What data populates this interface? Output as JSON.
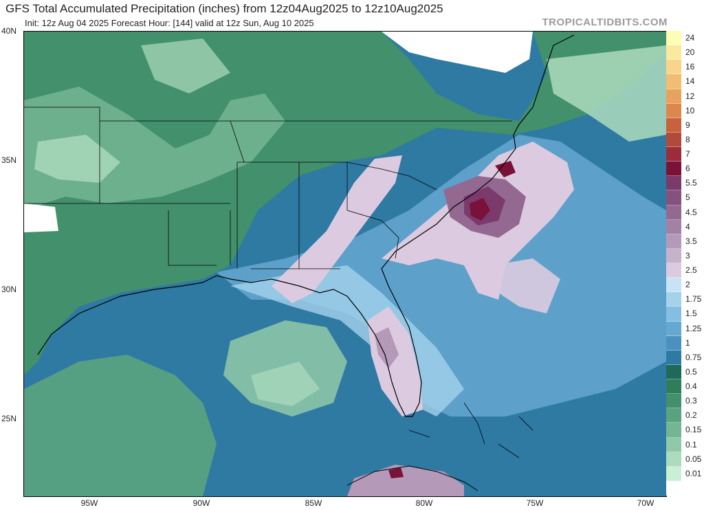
{
  "header": {
    "title": "GFS Total Accumulated Precipitation (inches) from 12z04Aug2025 to 12z10Aug2025",
    "subtitle": "Init: 12z Aug 04 2025   Forecast Hour: [144]   valid at 12z Sun, Aug 10 2025",
    "brand": "TROPICALTIDBITS.COM"
  },
  "map": {
    "lat_labels": [
      "40N",
      "35N",
      "30N",
      "25N"
    ],
    "lon_labels": [
      "95W",
      "90W",
      "85W",
      "80W",
      "75W",
      "70W"
    ],
    "land_border_color": "#000000",
    "ocean_color": "#2e7aa3"
  },
  "legend": {
    "levels": [
      {
        "label": "24",
        "color": "#fdfdb6"
      },
      {
        "label": "20",
        "color": "#fbe9a0"
      },
      {
        "label": "16",
        "color": "#f8d58a"
      },
      {
        "label": "14",
        "color": "#f2bc73"
      },
      {
        "label": "12",
        "color": "#e9a25e"
      },
      {
        "label": "10",
        "color": "#de874c"
      },
      {
        "label": "9",
        "color": "#c8623e"
      },
      {
        "label": "8",
        "color": "#b04a3c"
      },
      {
        "label": "7",
        "color": "#9a2c3c"
      },
      {
        "label": "6",
        "color": "#7a1138"
      },
      {
        "label": "5.5",
        "color": "#7b3a6c"
      },
      {
        "label": "5",
        "color": "#85517f"
      },
      {
        "label": "4.5",
        "color": "#936992"
      },
      {
        "label": "4",
        "color": "#a381a5"
      },
      {
        "label": "3.5",
        "color": "#b599b8"
      },
      {
        "label": "3",
        "color": "#c7b2cb"
      },
      {
        "label": "2.5",
        "color": "#dccbe0"
      },
      {
        "label": "2",
        "color": "#c6e4f5"
      },
      {
        "label": "1.75",
        "color": "#a4d2eb"
      },
      {
        "label": "1.5",
        "color": "#84bee0"
      },
      {
        "label": "1.25",
        "color": "#65a8d2"
      },
      {
        "label": "1",
        "color": "#4b91bf"
      },
      {
        "label": "0.75",
        "color": "#2e7aa3"
      },
      {
        "label": "0.5",
        "color": "#1d6a5a"
      },
      {
        "label": "0.4",
        "color": "#2f7e5a"
      },
      {
        "label": "0.3",
        "color": "#43906c"
      },
      {
        "label": "0.2",
        "color": "#5aa37f"
      },
      {
        "label": "0.15",
        "color": "#74b693"
      },
      {
        "label": "0.1",
        "color": "#8fc9a8"
      },
      {
        "label": "0.05",
        "color": "#acdcbd"
      },
      {
        "label": "0.01",
        "color": "#cbeed6"
      },
      {
        "label": "",
        "color": "#ffffff"
      }
    ]
  }
}
